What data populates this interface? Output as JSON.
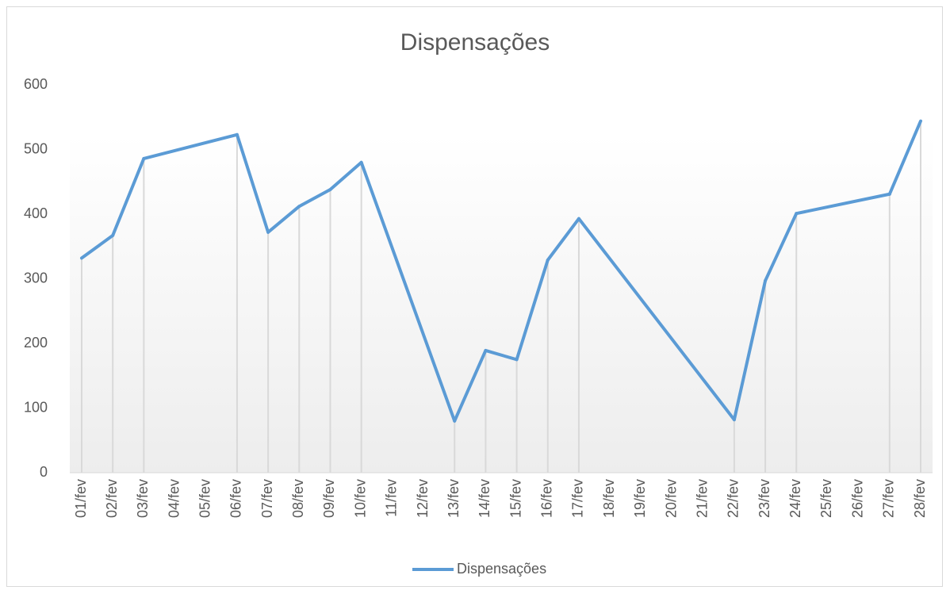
{
  "chart_data": {
    "type": "line",
    "title": "Dispensações",
    "categories": [
      "01/fev",
      "02/fev",
      "03/fev",
      "04/fev",
      "05/fev",
      "06/fev",
      "07/fev",
      "08/fev",
      "09/fev",
      "10/fev",
      "11/fev",
      "12/fev",
      "13/fev",
      "14/fev",
      "15/fev",
      "16/fev",
      "17/fev",
      "18/fev",
      "19/fev",
      "20/fev",
      "21/fev",
      "22/fev",
      "23/fev",
      "24/fev",
      "25/fev",
      "26/fev",
      "27/fev",
      "28/fev"
    ],
    "series": [
      {
        "name": "Dispensações",
        "color": "#5b9bd5",
        "values": [
          332,
          367,
          486,
          null,
          null,
          523,
          372,
          412,
          438,
          480,
          null,
          null,
          80,
          189,
          175,
          329,
          393,
          null,
          null,
          null,
          null,
          82,
          297,
          401,
          null,
          null,
          431,
          544
        ]
      }
    ],
    "span_gaps": true,
    "drop_lines": true,
    "ylim": [
      0,
      600
    ],
    "yticks": [
      0,
      100,
      200,
      300,
      400,
      500,
      600
    ],
    "grid": false,
    "legend": "bottom"
  }
}
